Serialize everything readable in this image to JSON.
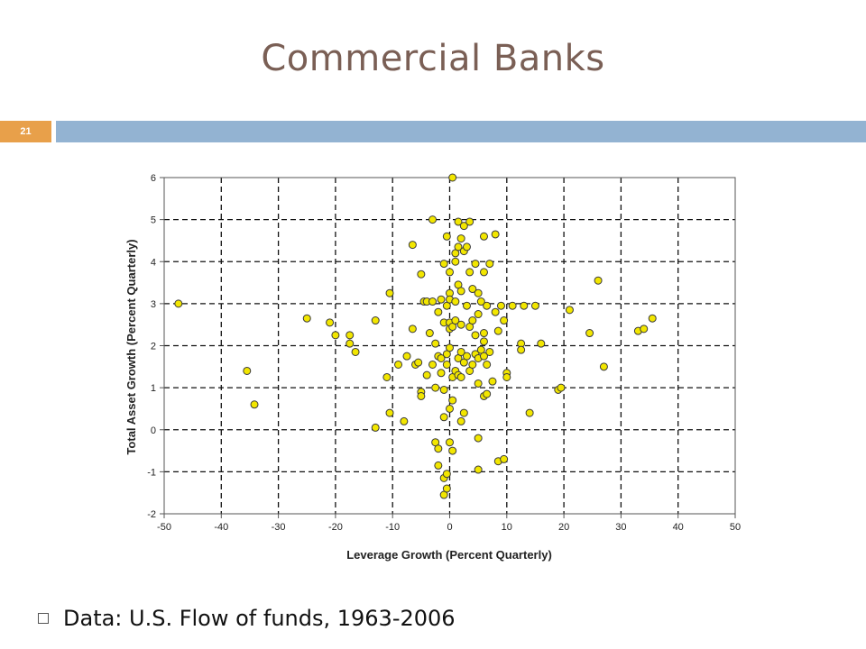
{
  "slide": {
    "title": "Commercial Banks",
    "number": "21",
    "bullet_text": "Data: U.S. Flow of funds, 1963-2006"
  },
  "colors": {
    "title": "#7a5f55",
    "badge": "#e8a04a",
    "accent_bar": "#93b3d2",
    "point_fill": "#f2e600",
    "point_stroke": "#3a3a3a"
  },
  "chart_data": {
    "type": "scatter",
    "xlabel": "Leverage Growth (Percent Quarterly)",
    "ylabel": "Total Asset Growth (Percent Quarterly)",
    "xlim": [
      -50,
      50
    ],
    "ylim": [
      -2,
      6
    ],
    "xticks": [
      -50,
      -40,
      -30,
      -20,
      -10,
      0,
      10,
      20,
      30,
      40,
      50
    ],
    "yticks": [
      -2,
      -1,
      0,
      1,
      2,
      3,
      4,
      5,
      6
    ],
    "grid": true,
    "legend": "none",
    "points": [
      [
        -47.5,
        3.0
      ],
      [
        -35.5,
        1.4
      ],
      [
        -34.2,
        0.6
      ],
      [
        -25,
        2.65
      ],
      [
        -21,
        2.55
      ],
      [
        -20,
        2.25
      ],
      [
        -17.5,
        2.05
      ],
      [
        -17.5,
        2.25
      ],
      [
        -16.5,
        1.85
      ],
      [
        -13,
        2.6
      ],
      [
        -13,
        0.05
      ],
      [
        -11,
        1.25
      ],
      [
        -10.5,
        3.25
      ],
      [
        -10.5,
        0.4
      ],
      [
        -9,
        1.55
      ],
      [
        -8,
        0.2
      ],
      [
        -7.5,
        1.75
      ],
      [
        -6.5,
        4.4
      ],
      [
        -6.5,
        2.4
      ],
      [
        -6,
        1.55
      ],
      [
        -5.5,
        1.6
      ],
      [
        -5,
        3.7
      ],
      [
        -5,
        0.9
      ],
      [
        -5,
        0.8
      ],
      [
        -4.5,
        3.05
      ],
      [
        -4,
        3.05
      ],
      [
        -4,
        1.3
      ],
      [
        -3.5,
        2.3
      ],
      [
        -3,
        5.0
      ],
      [
        -3,
        3.05
      ],
      [
        -3,
        1.55
      ],
      [
        -2.5,
        -0.3
      ],
      [
        -2.5,
        2.05
      ],
      [
        -2.5,
        1.0
      ],
      [
        -2,
        2.8
      ],
      [
        -2,
        1.75
      ],
      [
        -2,
        -0.45
      ],
      [
        -2,
        -0.85
      ],
      [
        -1.5,
        3.1
      ],
      [
        -1.5,
        1.7
      ],
      [
        -1.5,
        1.35
      ],
      [
        -1,
        3.95
      ],
      [
        -1,
        2.55
      ],
      [
        -1,
        0.95
      ],
      [
        -1,
        0.3
      ],
      [
        -1,
        -1.15
      ],
      [
        -1,
        -1.55
      ],
      [
        -0.5,
        4.6
      ],
      [
        -0.5,
        2.95
      ],
      [
        -0.5,
        1.8
      ],
      [
        -0.5,
        1.55
      ],
      [
        -0.5,
        -1.05
      ],
      [
        -0.5,
        -1.4
      ],
      [
        0,
        3.75
      ],
      [
        0,
        3.25
      ],
      [
        0,
        3.1
      ],
      [
        0,
        2.55
      ],
      [
        0,
        2.4
      ],
      [
        0,
        1.95
      ],
      [
        0,
        0.5
      ],
      [
        0,
        -0.3
      ],
      [
        0.5,
        6.0
      ],
      [
        0.5,
        2.45
      ],
      [
        0.5,
        1.25
      ],
      [
        0.5,
        0.7
      ],
      [
        0.5,
        -0.5
      ],
      [
        1,
        4.2
      ],
      [
        1,
        4.0
      ],
      [
        1,
        3.05
      ],
      [
        1,
        2.6
      ],
      [
        1,
        1.4
      ],
      [
        1.5,
        4.95
      ],
      [
        1.5,
        4.35
      ],
      [
        1.5,
        3.45
      ],
      [
        1.5,
        1.7
      ],
      [
        1.5,
        1.3
      ],
      [
        2,
        4.55
      ],
      [
        2,
        3.3
      ],
      [
        2,
        2.5
      ],
      [
        2,
        1.85
      ],
      [
        2,
        1.25
      ],
      [
        2,
        0.2
      ],
      [
        2.5,
        4.85
      ],
      [
        2.5,
        4.25
      ],
      [
        2.5,
        1.6
      ],
      [
        2.5,
        0.4
      ],
      [
        3,
        4.35
      ],
      [
        3,
        2.95
      ],
      [
        3,
        1.75
      ],
      [
        3.5,
        4.95
      ],
      [
        3.5,
        3.75
      ],
      [
        3.5,
        2.45
      ],
      [
        3.5,
        1.4
      ],
      [
        4,
        3.35
      ],
      [
        4,
        2.6
      ],
      [
        4,
        1.55
      ],
      [
        4.5,
        3.95
      ],
      [
        4.5,
        2.25
      ],
      [
        4.5,
        1.8
      ],
      [
        5,
        3.25
      ],
      [
        5,
        2.75
      ],
      [
        5,
        1.7
      ],
      [
        5,
        1.1
      ],
      [
        5,
        -0.2
      ],
      [
        5,
        -0.95
      ],
      [
        5.5,
        3.05
      ],
      [
        5.5,
        1.9
      ],
      [
        6,
        4.6
      ],
      [
        6,
        3.75
      ],
      [
        6,
        2.3
      ],
      [
        6,
        2.1
      ],
      [
        6,
        1.75
      ],
      [
        6,
        0.8
      ],
      [
        6.5,
        2.95
      ],
      [
        6.5,
        1.55
      ],
      [
        6.5,
        0.85
      ],
      [
        7,
        3.95
      ],
      [
        7,
        1.85
      ],
      [
        7.5,
        1.15
      ],
      [
        8,
        4.65
      ],
      [
        8,
        2.8
      ],
      [
        8.5,
        2.35
      ],
      [
        8.5,
        -0.75
      ],
      [
        9,
        2.95
      ],
      [
        9.5,
        2.6
      ],
      [
        9.5,
        -0.7
      ],
      [
        10,
        1.35
      ],
      [
        10,
        1.25
      ],
      [
        11,
        2.95
      ],
      [
        12.5,
        2.05
      ],
      [
        12.5,
        1.9
      ],
      [
        13,
        2.95
      ],
      [
        14,
        0.4
      ],
      [
        15,
        2.95
      ],
      [
        16,
        2.05
      ],
      [
        19,
        0.95
      ],
      [
        19.5,
        1.0
      ],
      [
        21,
        2.85
      ],
      [
        24.5,
        2.3
      ],
      [
        26,
        3.55
      ],
      [
        27,
        1.5
      ],
      [
        33,
        2.35
      ],
      [
        34,
        2.4
      ],
      [
        35.5,
        2.65
      ]
    ]
  }
}
